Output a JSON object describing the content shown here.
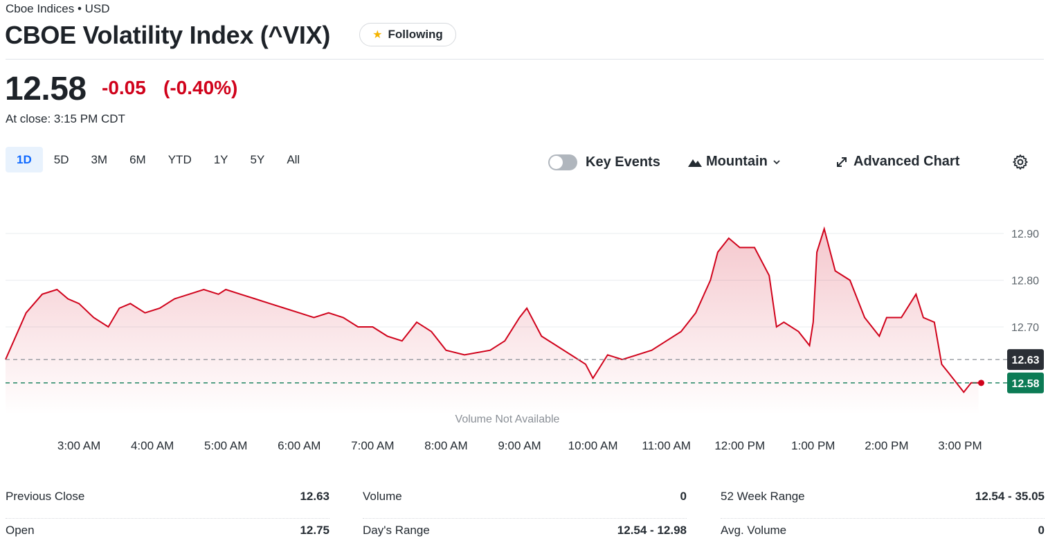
{
  "header": {
    "exchange": "Cboe Indices • USD",
    "title": "CBOE Volatility Index (^VIX)",
    "follow_label": "Following"
  },
  "quote": {
    "price": "12.58",
    "change": "-0.05",
    "change_pct": "(-0.40%)",
    "close_time": "At close: 3:15 PM CDT"
  },
  "range_tabs": [
    "1D",
    "5D",
    "3M",
    "6M",
    "YTD",
    "1Y",
    "5Y",
    "All"
  ],
  "active_range": "1D",
  "controls": {
    "key_events_label": "Key Events",
    "key_events_on": false,
    "chart_type_label": "Mountain",
    "advanced_chart_label": "Advanced Chart"
  },
  "colors": {
    "line": "#d0021b",
    "previous_close_badge": "#2b2f36",
    "last_price_badge": "#0c7b55"
  },
  "chart_data": {
    "type": "area",
    "y_ticks": [
      "12.90",
      "12.80",
      "12.70"
    ],
    "y_tick_values": [
      12.9,
      12.8,
      12.7
    ],
    "ylim": [
      12.51,
      12.97
    ],
    "x_ticks": [
      "3:00 AM",
      "4:00 AM",
      "5:00 AM",
      "6:00 AM",
      "7:00 AM",
      "8:00 AM",
      "9:00 AM",
      "10:00 AM",
      "11:00 AM",
      "12:00 PM",
      "1:00 PM",
      "2:00 PM",
      "3:00 PM"
    ],
    "x_tick_hours": [
      3,
      4,
      5,
      6,
      7,
      8,
      9,
      10,
      11,
      12,
      13,
      14,
      15
    ],
    "x_range_hours": [
      2.0,
      15.5
    ],
    "previous_close": 12.63,
    "previous_close_label": "12.63",
    "last_price": 12.58,
    "last_price_label": "12.58",
    "volume_note": "Volume Not Available",
    "series": [
      {
        "x": [
          2.0,
          2.28,
          2.5,
          2.7,
          2.85,
          3.0,
          3.2,
          3.4,
          3.55,
          3.7,
          3.9,
          4.1,
          4.3,
          4.5,
          4.7,
          4.9,
          5.0,
          5.2,
          5.4,
          5.6,
          5.8,
          6.0,
          6.2,
          6.4,
          6.6,
          6.8,
          7.0,
          7.2,
          7.4,
          7.6,
          7.8,
          8.0,
          8.25,
          8.6,
          8.8,
          9.0,
          9.1,
          9.3,
          9.5,
          9.7,
          9.9,
          10.0,
          10.2,
          10.4,
          10.6,
          10.8,
          11.0,
          11.2,
          11.4,
          11.6,
          11.7,
          11.85,
          12.0,
          12.2,
          12.4,
          12.5,
          12.6,
          12.8,
          12.95,
          13.0,
          13.05,
          13.15,
          13.3,
          13.5,
          13.7,
          13.9,
          14.0,
          14.2,
          14.4,
          14.5,
          14.65,
          14.75,
          14.85,
          14.95,
          15.05,
          15.15,
          15.25
        ],
        "y": [
          12.63,
          12.73,
          12.77,
          12.78,
          12.76,
          12.75,
          12.72,
          12.7,
          12.74,
          12.75,
          12.73,
          12.74,
          12.76,
          12.77,
          12.78,
          12.77,
          12.78,
          12.77,
          12.76,
          12.75,
          12.74,
          12.73,
          12.72,
          12.73,
          12.72,
          12.7,
          12.7,
          12.68,
          12.67,
          12.71,
          12.69,
          12.65,
          12.64,
          12.65,
          12.67,
          12.72,
          12.74,
          12.68,
          12.66,
          12.64,
          12.62,
          12.59,
          12.64,
          12.63,
          12.64,
          12.65,
          12.67,
          12.69,
          12.73,
          12.8,
          12.86,
          12.89,
          12.87,
          12.87,
          12.81,
          12.7,
          12.71,
          12.69,
          12.66,
          12.71,
          12.86,
          12.91,
          12.82,
          12.8,
          12.72,
          12.68,
          12.72,
          12.72,
          12.77,
          12.72,
          12.71,
          12.62,
          12.6,
          12.58,
          12.56,
          12.58,
          12.58
        ]
      }
    ]
  },
  "stats": [
    [
      {
        "label": "Previous Close",
        "value": "12.63"
      },
      {
        "label": "Open",
        "value": "12.75"
      }
    ],
    [
      {
        "label": "Volume",
        "value": "0"
      },
      {
        "label": "Day's Range",
        "value": "12.54 - 12.98"
      }
    ],
    [
      {
        "label": "52 Week Range",
        "value": "12.54 - 35.05"
      },
      {
        "label": "Avg. Volume",
        "value": "0"
      }
    ]
  ]
}
